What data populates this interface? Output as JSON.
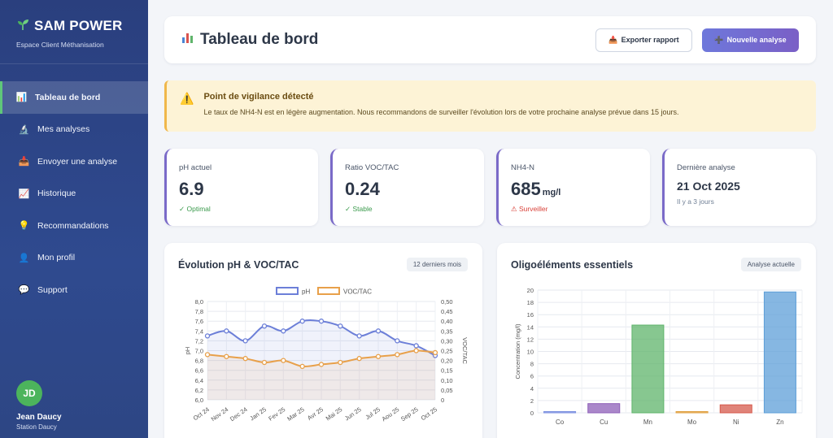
{
  "brand": {
    "title": "SAM POWER",
    "subtitle": "Espace Client Méthanisation",
    "icon": "sprout-icon"
  },
  "sidebar": {
    "items": [
      {
        "label": "Tableau de bord",
        "icon": "chart-icon",
        "glyph": "📊",
        "active": true
      },
      {
        "label": "Mes analyses",
        "icon": "microscope-icon",
        "glyph": "🔬",
        "active": false
      },
      {
        "label": "Envoyer une analyse",
        "icon": "inbox-icon",
        "glyph": "📥",
        "active": false
      },
      {
        "label": "Historique",
        "icon": "trend-icon",
        "glyph": "📈",
        "active": false
      },
      {
        "label": "Recommandations",
        "icon": "bulb-icon",
        "glyph": "💡",
        "active": false
      },
      {
        "label": "Mon profil",
        "icon": "user-icon",
        "glyph": "👤",
        "active": false
      },
      {
        "label": "Support",
        "icon": "chat-icon",
        "glyph": "💬",
        "active": false
      }
    ]
  },
  "user": {
    "initials": "JD",
    "name": "Jean Daucy",
    "station": "Station Daucy"
  },
  "header": {
    "title": "Tableau de bord",
    "export_label": "Exporter rapport",
    "new_label": "Nouvelle analyse"
  },
  "alert": {
    "title": "Point de vigilance détecté",
    "text": "Le taux de NH4-N est en légère augmentation. Nous recommandons de surveiller l'évolution lors de votre prochaine analyse prévue dans 15 jours."
  },
  "stats": [
    {
      "label": "pH actuel",
      "value": "6.9",
      "unit": "",
      "note": "✓ Optimal",
      "note_color": "#3a9a4c"
    },
    {
      "label": "Ratio VOC/TAC",
      "value": "0.24",
      "unit": "",
      "note": "✓ Stable",
      "note_color": "#3a9a4c"
    },
    {
      "label": "NH4-N",
      "value": "685",
      "unit": "mg/l",
      "note": "⚠ Surveiller",
      "note_color": "#d9423a"
    },
    {
      "label": "Dernière analyse",
      "value": "21 Oct 2025",
      "unit": "",
      "note": "Il y a 3 jours",
      "note_color": "#718096"
    }
  ],
  "charts": {
    "line_title": "Évolution pH & VOC/TAC",
    "line_tag": "12 derniers mois",
    "bar_title": "Oligoéléments essentiels",
    "bar_tag": "Analyse actuelle"
  },
  "chart_data": [
    {
      "type": "line",
      "categories": [
        "Oct 24",
        "Nov 24",
        "Dec 24",
        "Jan 25",
        "Fev 25",
        "Mar 25",
        "Avr 25",
        "Mai 25",
        "Jun 25",
        "Jul 25",
        "Aou 25",
        "Sep 25",
        "Oct 25"
      ],
      "series": [
        {
          "name": "pH",
          "axis": "left",
          "color": "#6c7fd8",
          "values": [
            7.3,
            7.4,
            7.2,
            7.5,
            7.4,
            7.6,
            7.6,
            7.5,
            7.3,
            7.4,
            7.2,
            7.1,
            6.9
          ]
        },
        {
          "name": "VOC/TAC",
          "axis": "right",
          "color": "#e8a04a",
          "values": [
            0.23,
            0.22,
            0.21,
            0.19,
            0.2,
            0.17,
            0.18,
            0.19,
            0.21,
            0.22,
            0.23,
            0.25,
            0.24
          ]
        }
      ],
      "ylabel": "pH",
      "ylim": [
        6.0,
        8.0
      ],
      "y_ticks": [
        "6,0",
        "6,2",
        "6,4",
        "6,6",
        "6,8",
        "7,0",
        "7,2",
        "7,4",
        "7,6",
        "7,8",
        "8,0"
      ],
      "y2label": "VOC/TAC",
      "y2lim": [
        0,
        0.5
      ],
      "y2_ticks": [
        "0",
        "0,05",
        "0,10",
        "0,15",
        "0,20",
        "0,25",
        "0,30",
        "0,35",
        "0,40",
        "0,45",
        "0,50"
      ],
      "legend": "top",
      "grid": true
    },
    {
      "type": "bar",
      "categories": [
        "Co",
        "Cu",
        "Mn",
        "Mo",
        "Ni",
        "Zn"
      ],
      "values": [
        0.2,
        1.5,
        14.3,
        0.2,
        1.3,
        19.7
      ],
      "colors": [
        "#7b8fe0",
        "#8e5fb8",
        "#5fb46b",
        "#e0a040",
        "#d65a4c",
        "#5d9fd8"
      ],
      "ylabel": "Concentration (mg/l)",
      "ylim": [
        0,
        20
      ],
      "y_ticks": [
        "0",
        "2",
        "4",
        "6",
        "8",
        "10",
        "12",
        "14",
        "16",
        "18",
        "20"
      ],
      "grid": true
    }
  ]
}
